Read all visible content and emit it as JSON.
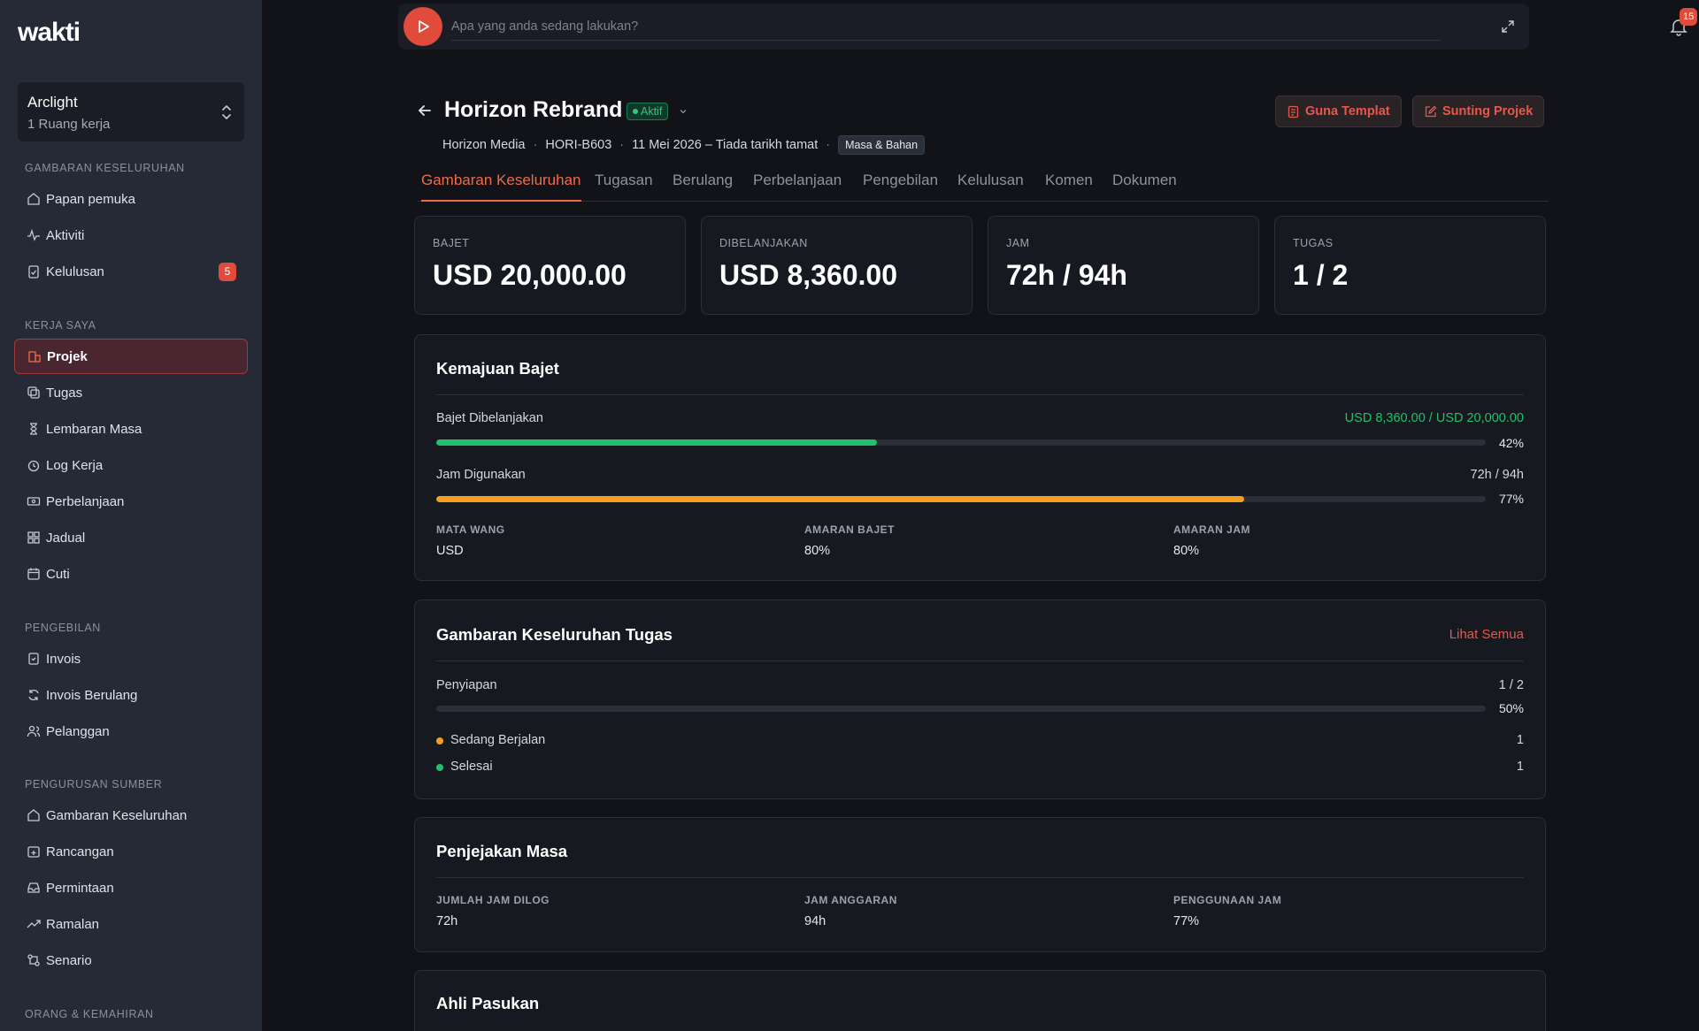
{
  "app": {
    "logo": "wakti"
  },
  "workspace": {
    "name": "Arclight",
    "sub": "1 Ruang kerja"
  },
  "sidebar": {
    "sections": [
      {
        "label": "GAMBARAN KESELURUHAN"
      },
      {
        "label": "KERJA SAYA"
      },
      {
        "label": "PENGEBILAN"
      },
      {
        "label": "PENGURUSAN SUMBER"
      },
      {
        "label": "ORANG & KEMAHIRAN"
      }
    ],
    "items": [
      {
        "label": "Papan pemuka",
        "icon": "home-icon"
      },
      {
        "label": "Aktiviti",
        "icon": "activity-icon"
      },
      {
        "label": "Kelulusan",
        "icon": "clipboard-check-icon",
        "badge": "5"
      },
      {
        "label": "Projek",
        "icon": "building-icon",
        "active": true
      },
      {
        "label": "Tugas",
        "icon": "tasks-icon"
      },
      {
        "label": "Lembaran Masa",
        "icon": "hourglass-icon"
      },
      {
        "label": "Log Kerja",
        "icon": "clock-icon"
      },
      {
        "label": "Perbelanjaan",
        "icon": "banknote-icon"
      },
      {
        "label": "Jadual",
        "icon": "grid-icon"
      },
      {
        "label": "Cuti",
        "icon": "calendar-icon"
      },
      {
        "label": "Invois",
        "icon": "invoice-icon"
      },
      {
        "label": "Invois Berulang",
        "icon": "refresh-icon"
      },
      {
        "label": "Pelanggan",
        "icon": "users-icon"
      },
      {
        "label": "Gambaran Keseluruhan",
        "icon": "home-icon"
      },
      {
        "label": "Rancangan",
        "icon": "calendar-plus-icon"
      },
      {
        "label": "Permintaan",
        "icon": "inbox-icon"
      },
      {
        "label": "Ramalan",
        "icon": "trend-up-icon"
      },
      {
        "label": "Senario",
        "icon": "branch-icon"
      }
    ]
  },
  "topbar": {
    "placeholder": "Apa yang anda sedang lakukan?",
    "notifications": "15"
  },
  "project": {
    "title": "Horizon Rebrand",
    "status": "Aktif",
    "client": "Horizon Media",
    "code": "HORI-B603",
    "dates": "11 Mei 2026 – Tiada tarikh tamat",
    "billing_tag": "Masa & Bahan",
    "btn_template": "Guna Templat",
    "btn_edit": "Sunting Projek"
  },
  "tabs": [
    "Gambaran Keseluruhan",
    "Tugasan",
    "Berulang",
    "Perbelanjaan",
    "Pengebilan",
    "Kelulusan",
    "Komen",
    "Dokumen"
  ],
  "kpis": [
    {
      "label": "BAJET",
      "value": "USD 20,000.00"
    },
    {
      "label": "DIBELANJAKAN",
      "value": "USD 8,360.00"
    },
    {
      "label": "JAM",
      "value": "72h / 94h"
    },
    {
      "label": "TUGAS",
      "value": "1 / 2"
    }
  ],
  "budget": {
    "title": "Kemajuan Bajet",
    "spent_label": "Bajet Dibelanjakan",
    "spent_value": "USD 8,360.00 / USD 20,000.00",
    "spent_pct": "42%",
    "spent_fraction": 0.42,
    "hours_label": "Jam Digunakan",
    "hours_value": "72h / 94h",
    "hours_pct": "77%",
    "hours_fraction": 0.77,
    "currency_label": "MATA WANG",
    "currency": "USD",
    "budget_alert_label": "AMARAN BAJET",
    "budget_alert": "80%",
    "hours_alert_label": "AMARAN JAM",
    "hours_alert": "80%",
    "colors": {
      "spent": "#22c06a",
      "hours": "#f5a01c"
    }
  },
  "tasks": {
    "title": "Gambaran Keseluruhan Tugas",
    "view_all": "Lihat Semua",
    "phase": "Penyiapan",
    "phase_value": "1 / 2",
    "phase_pct": "50%",
    "phase_fraction": 0.5,
    "in_progress_label": "Sedang Berjalan",
    "in_progress": "1",
    "done_label": "Selesai",
    "done": "1",
    "colors": {
      "in_progress": "#f5a01c",
      "done": "#22c06a"
    }
  },
  "time": {
    "title": "Penjejakan Masa",
    "logged_label": "JUMLAH JAM DILOG",
    "logged": "72h",
    "budget_label": "JAM ANGGARAN",
    "budget": "94h",
    "usage_label": "PENGGUNAAN JAM",
    "usage": "77%"
  },
  "team": {
    "title": "Ahli Pasukan"
  }
}
